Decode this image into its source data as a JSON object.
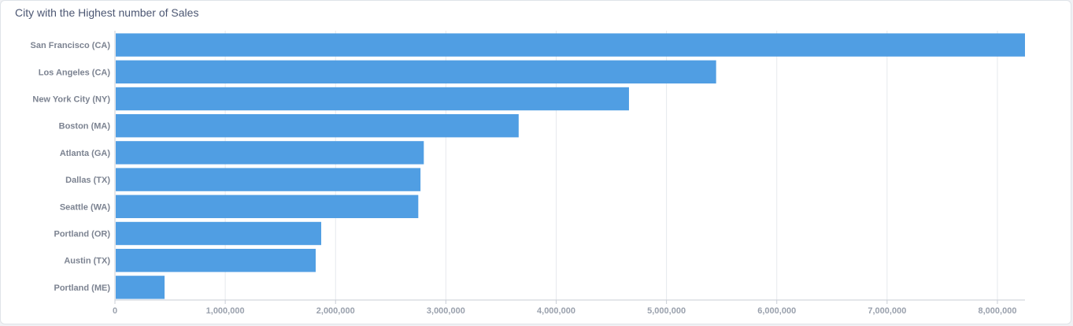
{
  "chart_data": {
    "type": "bar",
    "orientation": "horizontal",
    "title": "City with the Highest number of Sales",
    "categories": [
      "San Francisco (CA)",
      "Los Angeles (CA)",
      "New York City (NY)",
      "Boston (MA)",
      "Atlanta (GA)",
      "Dallas (TX)",
      "Seattle (WA)",
      "Portland (OR)",
      "Austin (TX)",
      "Portland (ME)"
    ],
    "values": [
      8260000,
      5450000,
      4660000,
      3660000,
      2800000,
      2770000,
      2750000,
      1870000,
      1820000,
      450000
    ],
    "xlim": [
      0,
      8250000
    ],
    "x_ticks": [
      0,
      1000000,
      2000000,
      3000000,
      4000000,
      5000000,
      6000000,
      7000000,
      8000000
    ],
    "x_tick_labels": [
      "0",
      "1,000,000",
      "2,000,000",
      "3,000,000",
      "4,000,000",
      "5,000,000",
      "6,000,000",
      "7,000,000",
      "8,000,000"
    ],
    "grid": "vertical",
    "legend": "none",
    "bar_color": "#509ee3"
  }
}
